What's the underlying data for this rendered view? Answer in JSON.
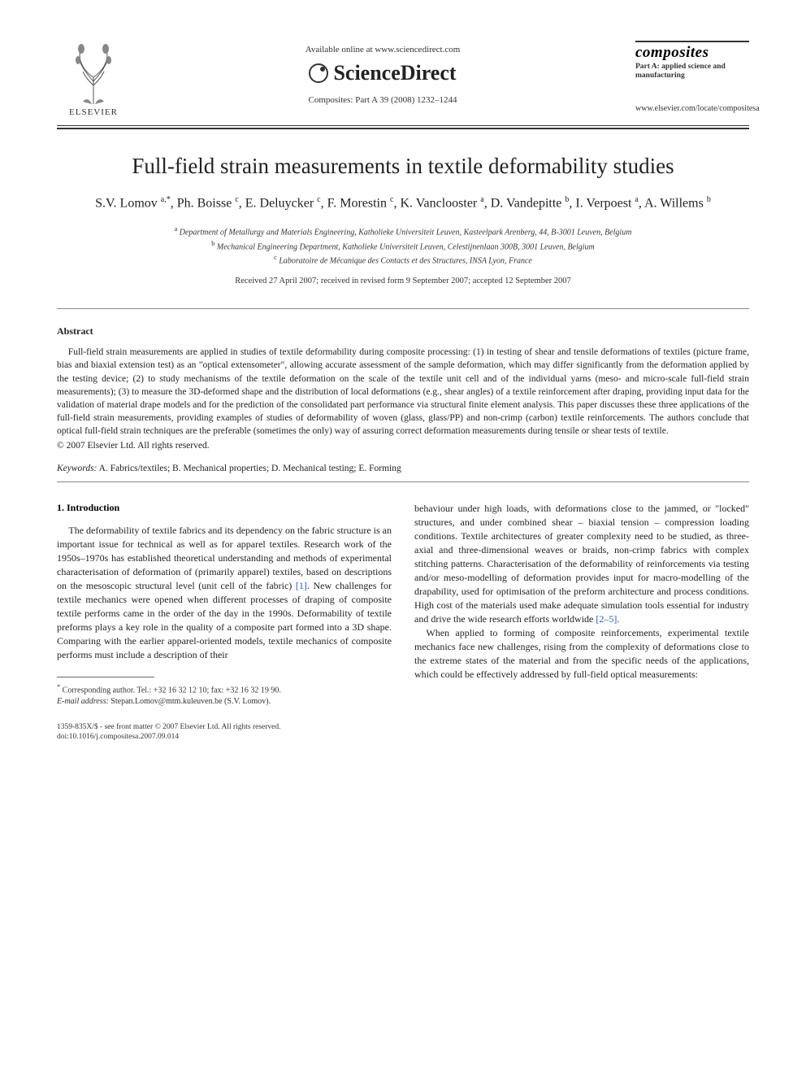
{
  "header": {
    "publisher_label": "ELSEVIER",
    "available_online": "Available online at www.sciencedirect.com",
    "sciencedirect": "ScienceDirect",
    "citation": "Composites: Part A 39 (2008) 1232–1244",
    "journal_logo": "composites",
    "journal_subtitle": "Part A: applied science and manufacturing",
    "journal_url": "www.elsevier.com/locate/compositesa"
  },
  "title": "Full-field strain measurements in textile deformability studies",
  "authors_html": "S.V. Lomov <sup>a,*</sup>, Ph. Boisse <sup>c</sup>, E. Deluycker <sup>c</sup>, F. Morestin <sup>c</sup>, K. Vanclooster <sup>a</sup>, D. Vandepitte <sup>b</sup>, I. Verpoest <sup>a</sup>, A. Willems <sup>b</sup>",
  "affiliations": {
    "a": "Department of Metallurgy and Materials Engineering, Katholieke Universiteit Leuven, Kasteelpark Arenberg, 44, B-3001 Leuven, Belgium",
    "b": "Mechanical Engineering Department, Katholieke Universiteit Leuven, Celestijnenlaan 300B, 3001 Leuven, Belgium",
    "c": "Laboratoire de Mécanique des Contacts et des Structures, INSA Lyon, France"
  },
  "dates": "Received 27 April 2007; received in revised form 9 September 2007; accepted 12 September 2007",
  "abstract_heading": "Abstract",
  "abstract": "Full-field strain measurements are applied in studies of textile deformability during composite processing: (1) in testing of shear and tensile deformations of textiles (picture frame, bias and biaxial extension test) as an \"optical extensometer\", allowing accurate assessment of the sample deformation, which may differ significantly from the deformation applied by the testing device; (2) to study mechanisms of the textile deformation on the scale of the textile unit cell and of the individual yarns (meso- and micro-scale full-field strain measurements); (3) to measure the 3D-deformed shape and the distribution of local deformations (e.g., shear angles) of a textile reinforcement after draping, providing input data for the validation of material drape models and for the prediction of the consolidated part performance via structural finite element analysis. This paper discusses these three applications of the full-field strain measurements, providing examples of studies of deformability of woven (glass, glass/PP) and non-crimp (carbon) textile reinforcements. The authors conclude that optical full-field strain techniques are the preferable (sometimes the only) way of assuring correct deformation measurements during tensile or shear tests of textile.",
  "copyright": "© 2007 Elsevier Ltd. All rights reserved.",
  "keywords_label": "Keywords:",
  "keywords": "A. Fabrics/textiles; B. Mechanical properties; D. Mechanical testing; E. Forming",
  "intro_heading": "1. Introduction",
  "col1_p1": "The deformability of textile fabrics and its dependency on the fabric structure is an important issue for technical as well as for apparel textiles. Research work of the 1950s–1970s has established theoretical understanding and methods of experimental characterisation of deformation of (primarily apparel) textiles, based on descriptions on the mesoscopic structural level (unit cell of the fabric) ",
  "col1_ref1": "[1]",
  "col1_p1b": ". New challenges for textile mechanics were opened when different processes of draping of composite textile performs came in the order of the day in the 1990s. Deformability of textile preforms plays a key role in the quality of a composite part formed into a 3D shape. Comparing with the earlier apparel-oriented models, textile mechanics of composite performs must include a description of their",
  "col2_p1": "behaviour under high loads, with deformations close to the jammed, or \"locked\" structures, and under combined shear – biaxial tension – compression loading conditions. Textile architectures of greater complexity need to be studied, as three-axial and three-dimensional weaves or braids, non-crimp fabrics with complex stitching patterns. Characterisation of the deformability of reinforcements via testing and/or meso-modelling of deformation provides input for macro-modelling of the drapability, used for optimisation of the preform architecture and process conditions. High cost of the materials used make adequate simulation tools essential for industry and drive the wide research efforts worldwide ",
  "col2_ref1": "[2–5]",
  "col2_p1b": ".",
  "col2_p2": "When applied to forming of composite reinforcements, experimental textile mechanics face new challenges, rising from the complexity of deformations close to the extreme states of the material and from the specific needs of the applications, which could be effectively addressed by full-field optical measurements:",
  "footnote": {
    "corr": "Corresponding author. Tel.: +32 16 32 12 10; fax: +32 16 32 19 90.",
    "email_label": "E-mail address:",
    "email": "Stepan.Lomov@mtm.kuleuven.be",
    "email_suffix": "(S.V. Lomov)."
  },
  "footer": {
    "line1": "1359-835X/$ - see front matter © 2007 Elsevier Ltd. All rights reserved.",
    "line2": "doi:10.1016/j.compositesa.2007.09.014"
  },
  "colors": {
    "page_bg": "#ffffff",
    "outer_bg": "#525252",
    "text": "#222222",
    "muted": "#333333",
    "link": "#2a5db0",
    "rule": "#333333"
  },
  "typography": {
    "title_fontsize": 27,
    "authors_fontsize": 16,
    "body_fontsize": 12,
    "abstract_fontsize": 11.5,
    "footnote_fontsize": 10,
    "font_family": "Times New Roman, serif"
  }
}
